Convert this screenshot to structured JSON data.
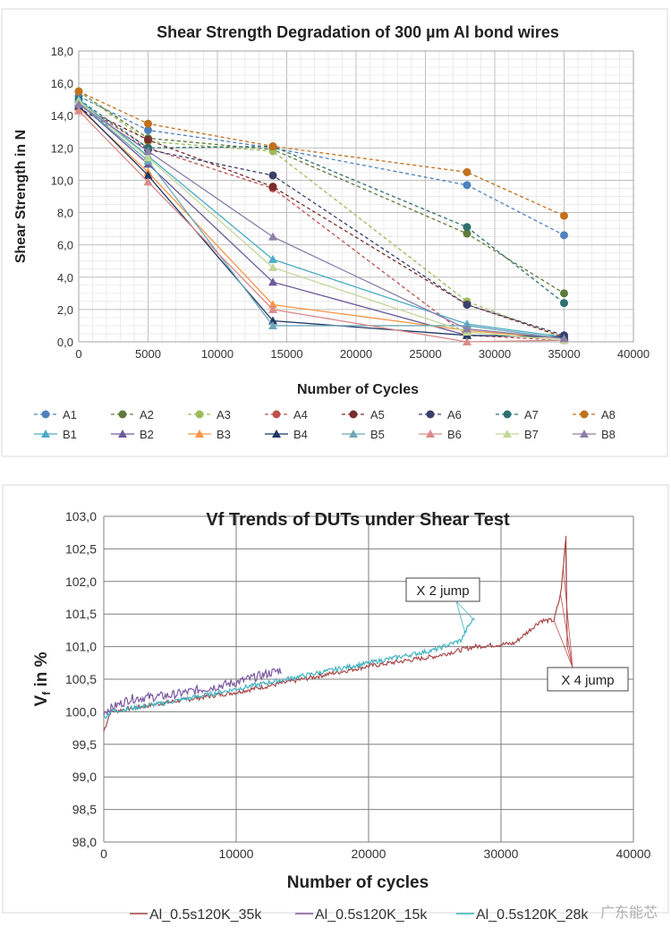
{
  "chart_data": [
    {
      "type": "line",
      "title": "Shear Strength Degradation of 300 µm Al bond wires",
      "xlabel": "Number of Cycles",
      "ylabel": "Shear Strength in N",
      "xlim": [
        0,
        40000
      ],
      "ylim": [
        0,
        18
      ],
      "xticks": [
        "0",
        "5000",
        "10000",
        "15000",
        "20000",
        "25000",
        "30000",
        "35000",
        "40000"
      ],
      "yticks": [
        "0,0",
        "2,0",
        "4,0",
        "6,0",
        "8,0",
        "10,0",
        "12,0",
        "14,0",
        "16,0",
        "18,0"
      ],
      "grid": true,
      "legend": "bottom",
      "x": [
        0,
        5000,
        14000,
        28000,
        35000
      ],
      "series": [
        {
          "name": "A1",
          "style": "dashed",
          "marker": "circle",
          "color": "#4f81bd",
          "values": [
            15.2,
            13.1,
            12.0,
            9.7,
            6.6
          ]
        },
        {
          "name": "A2",
          "style": "dashed",
          "marker": "circle",
          "color": "#5e7a3a",
          "values": [
            15.5,
            12.6,
            11.9,
            6.7,
            3.0
          ]
        },
        {
          "name": "A3",
          "style": "dashed",
          "marker": "circle",
          "color": "#9bbb59",
          "values": [
            15.5,
            12.4,
            11.8,
            2.5,
            0.2
          ]
        },
        {
          "name": "A4",
          "style": "dashed",
          "marker": "circle",
          "color": "#c0504d",
          "values": [
            14.8,
            12.0,
            9.5,
            0.4,
            0.1
          ]
        },
        {
          "name": "A5",
          "style": "dashed",
          "marker": "circle",
          "color": "#7a2b2b",
          "values": [
            14.6,
            12.5,
            9.6,
            2.3,
            0.3
          ]
        },
        {
          "name": "A6",
          "style": "dashed",
          "marker": "circle",
          "color": "#3b3f6b",
          "values": [
            14.5,
            11.9,
            10.3,
            2.3,
            0.4
          ]
        },
        {
          "name": "A7",
          "style": "dashed",
          "marker": "circle",
          "color": "#2f6f6f",
          "values": [
            15.0,
            12.0,
            12.1,
            7.1,
            2.4
          ]
        },
        {
          "name": "A8",
          "style": "dashed",
          "marker": "circle",
          "color": "#c2711d",
          "values": [
            15.5,
            13.5,
            12.1,
            10.5,
            7.8
          ]
        },
        {
          "name": "B1",
          "style": "solid",
          "marker": "triangle",
          "color": "#4bacc6",
          "values": [
            15.0,
            11.5,
            5.1,
            1.1,
            0.3
          ]
        },
        {
          "name": "B2",
          "style": "solid",
          "marker": "triangle",
          "color": "#6a5a9a",
          "values": [
            14.8,
            11.0,
            3.7,
            0.4,
            0.3
          ]
        },
        {
          "name": "B3",
          "style": "solid",
          "marker": "triangle",
          "color": "#f79646",
          "values": [
            14.5,
            10.5,
            2.3,
            0.7,
            0.2
          ]
        },
        {
          "name": "B4",
          "style": "solid",
          "marker": "triangle",
          "color": "#1f3864",
          "values": [
            14.6,
            10.3,
            1.3,
            0.4,
            0.3
          ]
        },
        {
          "name": "B5",
          "style": "solid",
          "marker": "triangle",
          "color": "#6fa8b8",
          "values": [
            14.8,
            11.2,
            1.0,
            1.0,
            0.2
          ]
        },
        {
          "name": "B6",
          "style": "solid",
          "marker": "triangle",
          "color": "#d98b8b",
          "values": [
            14.3,
            9.9,
            2.0,
            0.0,
            0.1
          ]
        },
        {
          "name": "B7",
          "style": "solid",
          "marker": "triangle",
          "color": "#c3d69b",
          "values": [
            14.9,
            11.4,
            4.6,
            0.6,
            0.1
          ]
        },
        {
          "name": "B8",
          "style": "solid",
          "marker": "triangle",
          "color": "#8c7fa8",
          "values": [
            14.7,
            11.8,
            6.5,
            0.8,
            0.2
          ]
        }
      ]
    },
    {
      "type": "line",
      "title": "Vf Trends of DUTs under Shear Test",
      "xlabel": "Number of cycles",
      "ylabel_main": "V",
      "ylabel_sub": "f",
      "ylabel_rest": " in %",
      "xlim": [
        0,
        40000
      ],
      "ylim": [
        98.0,
        103.0
      ],
      "xticks": [
        "0",
        "10000",
        "20000",
        "30000",
        "40000"
      ],
      "yticks": [
        "98,0",
        "98,5",
        "99,0",
        "99,5",
        "100,0",
        "100,5",
        "101,0",
        "101,5",
        "102,0",
        "102,5",
        "103,0"
      ],
      "grid": true,
      "legend": "bottom",
      "series": [
        {
          "name": "Al_0.5s120K_35k",
          "color": "#a8484a",
          "points": [
            [
              0,
              99.7
            ],
            [
              500,
              100.0
            ],
            [
              5000,
              100.15
            ],
            [
              10000,
              100.3
            ],
            [
              15000,
              100.5
            ],
            [
              20000,
              100.7
            ],
            [
              25000,
              100.85
            ],
            [
              28000,
              101.0
            ],
            [
              31000,
              101.05
            ],
            [
              33000,
              101.4
            ],
            [
              34000,
              101.4
            ],
            [
              34500,
              101.8
            ],
            [
              34700,
              102.2
            ],
            [
              34900,
              102.7
            ],
            [
              35000,
              101.0
            ]
          ]
        },
        {
          "name": "Al_0.5s120K_15k",
          "color": "#7d5aa0",
          "points": [
            [
              0,
              100.0
            ],
            [
              2000,
              100.2
            ],
            [
              5000,
              100.25
            ],
            [
              10000,
              100.45
            ],
            [
              13500,
              100.65
            ]
          ]
        },
        {
          "name": "Al_0.5s120K_28k",
          "color": "#3fb3c0",
          "points": [
            [
              0,
              99.9
            ],
            [
              500,
              100.0
            ],
            [
              5000,
              100.15
            ],
            [
              10000,
              100.35
            ],
            [
              15000,
              100.55
            ],
            [
              20000,
              100.75
            ],
            [
              25000,
              100.95
            ],
            [
              27000,
              101.1
            ],
            [
              27500,
              101.3
            ],
            [
              28000,
              101.45
            ]
          ]
        }
      ],
      "annotations": [
        "X 2 jump",
        "X 4 jump"
      ]
    }
  ],
  "watermark": "广东能芯"
}
